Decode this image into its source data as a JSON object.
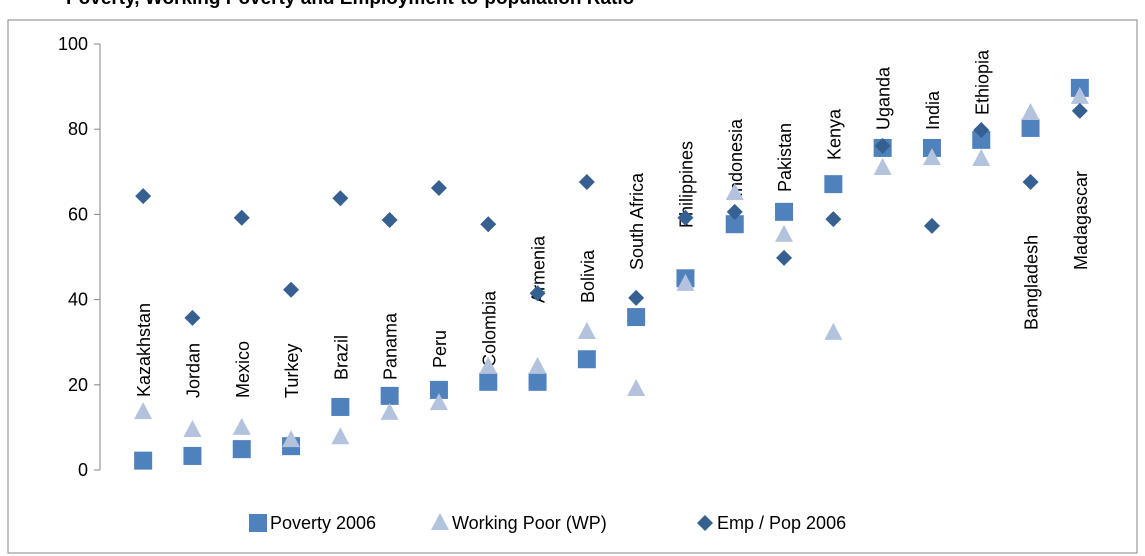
{
  "chart_data": {
    "type": "scatter",
    "title": "Poverty, Working Poverty and Employment-to-population Ratio",
    "categories": [
      "Kazakhstan",
      "Jordan",
      "Mexico",
      "Turkey",
      "Brazil",
      "Panama",
      "Peru",
      "Colombia",
      "Armenia",
      "Bolivia",
      "South Africa",
      "Philippines",
      "Indonesia",
      "Pakistan",
      "Kenya",
      "Uganda",
      "India",
      "Ethiopia",
      "Bangladesh",
      "Madagascar"
    ],
    "series": [
      {
        "name": "Poverty 2006",
        "color": "#4f81bd",
        "marker": "square",
        "values": [
          2.2,
          3.3,
          4.9,
          5.6,
          14.8,
          17.4,
          18.8,
          20.7,
          20.7,
          26,
          35.9,
          45,
          57.7,
          60.6,
          67.1,
          75.6,
          75.6,
          77.5,
          80.3,
          89.7
        ]
      },
      {
        "name": "Working Poor (WP)",
        "color": "#b3c3de",
        "marker": "triangle",
        "values": [
          13.6,
          9.4,
          9.9,
          7,
          7.7,
          13.4,
          15.7,
          24.2,
          24.2,
          32.4,
          19,
          43.7,
          65,
          55.2,
          32.2,
          70.9,
          73.2,
          73,
          83.8,
          87.6
        ]
      },
      {
        "name": "Emp / Pop 2006",
        "color": "#376092",
        "marker": "diamond",
        "values": [
          64.3,
          35.7,
          59.2,
          42.3,
          63.8,
          58.7,
          66.2,
          57.7,
          41.5,
          67.6,
          40.4,
          59.2,
          60.6,
          49.8,
          58.9,
          76.1,
          57.3,
          79.8,
          67.6,
          84.3
        ]
      }
    ],
    "ylim": [
      0,
      100
    ],
    "yticks": [
      0,
      20,
      40,
      60,
      80,
      100
    ],
    "legend": "bottom"
  }
}
